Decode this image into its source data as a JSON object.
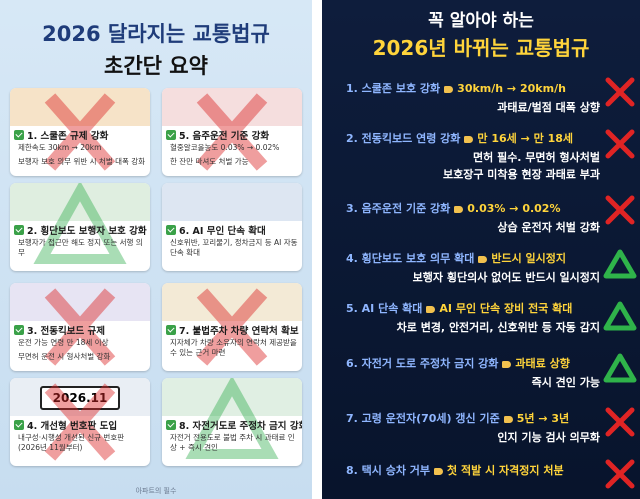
{
  "left": {
    "title": "2026 달라지는 교통법규",
    "subtitle": "초간단 요약",
    "cards": [
      {
        "heading": "1. 스쿨존 규제 강화",
        "bullets": [
          "제한속도 30km → 20km",
          "보행자 보호 의무 위반 시 처벌 대폭 강화"
        ]
      },
      {
        "heading": "2. 횡단보도 보행자 보호 강화",
        "bullets": [
          "보행자가 접근만 해도 정지 또는 서행 의무"
        ]
      },
      {
        "heading": "3. 전동킥보드 규제",
        "bullets": [
          "운전 가능 연령 만 18세 이상",
          "무면허 운전 시 형사처벌 강화"
        ]
      },
      {
        "heading": "4. 개선형 번호판 도입",
        "bullets": [
          "내구성·시행성 개선된 신규 번호판(2026년 11월부터)"
        ]
      },
      {
        "heading": "5. 음주운전 기준 강화",
        "bullets": [
          "혈중알코올농도 0.03% → 0.02%",
          "한 잔만 마셔도 처벌 가능"
        ]
      },
      {
        "heading": "6. AI 무인 단속 확대",
        "bullets": [
          "신호위반, 꼬리물기, 정차금지 등 AI 자동단속 확대"
        ]
      },
      {
        "heading": "7. 불법주차 차량 연락처 확보",
        "bullets": [
          "지자체가 차량 소유자의 연락처 제공받을 수 있는 근거 마련"
        ]
      },
      {
        "heading": "8. 자전거도로 주정차 금지 강화",
        "bullets": [
          "자전거 전용도로 불법 주차 시 과태료 인상 + 즉시 견인"
        ]
      }
    ],
    "plate": "2026.11",
    "footer": "아파트의 필수"
  },
  "right": {
    "title_top": "꼭 알아야 하는",
    "title": "2026년 바뀌는 교통법규",
    "items": [
      {
        "heading": "1. 스쿨존 보호 강화",
        "change": "30km/h → 20km/h",
        "details": [
          "과태료/벌점 대폭 상향"
        ]
      },
      {
        "heading": "2. 전동킥보드 연령 강화",
        "change": "만 16세 → 만 18세",
        "details": [
          "면허 필수. 무면허 형사처벌",
          "보호장구 미착용 현장 과태료 부과"
        ]
      },
      {
        "heading": "3. 음주운전 기준 강화",
        "change": "0.03% → 0.02%",
        "details": [
          "상습 운전자 처벌 강화"
        ]
      },
      {
        "heading": "4. 횡단보도 보호 의무 확대",
        "change": "반드시 일시정지",
        "details": [
          "보행자 횡단의사 없어도 반드시 일시정지"
        ]
      },
      {
        "heading": "5. AI 단속 확대",
        "change": "AI 무인 단속 장비 전국 확대",
        "details": [
          "차로 변경, 안전거리, 신호위반 등 자동 감지"
        ]
      },
      {
        "heading": "6. 자전거 도로 주정차 금지 강화",
        "change": "과태료 상향",
        "details": [
          "즉시 견인 가능"
        ]
      },
      {
        "heading": "7. 고령 운전자(70세) 갱신 기준",
        "change": "5년 → 3년",
        "details": [
          "인지 기능 검사 의무화"
        ]
      },
      {
        "heading": "8. 택시 승차 거부",
        "change": "첫 적발 시 자격정지 처분",
        "details": []
      }
    ]
  }
}
